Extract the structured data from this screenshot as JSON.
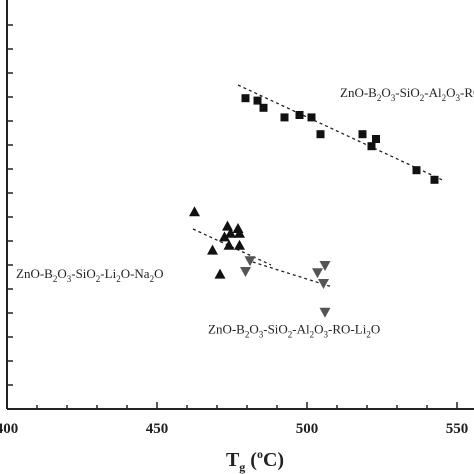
{
  "chart_data": {
    "type": "scatter",
    "title": "",
    "xlabel": "Tg (oC)",
    "xlabel_parts": {
      "main": "T",
      "sub": "g",
      "open": " (",
      "sup": "o",
      "close": "C)"
    },
    "ylabel": "",
    "xlim": [
      400,
      600
    ],
    "ylim": [
      0,
      17
    ],
    "x_ticks": [
      400,
      450,
      500,
      550
    ],
    "x_tick_labels": [
      "400",
      "450",
      "500",
      "550"
    ],
    "grid": false,
    "series": [
      {
        "marker": "square",
        "color": "#111111",
        "points": [
          [
            479.5,
            12.95
          ],
          [
            483.5,
            12.85
          ],
          [
            485.5,
            12.55
          ],
          [
            492.5,
            12.15
          ],
          [
            497.5,
            12.25
          ],
          [
            501.5,
            12.15
          ],
          [
            504.5,
            11.45
          ],
          [
            518.5,
            11.45
          ],
          [
            521.5,
            10.95
          ],
          [
            523.0,
            11.25
          ],
          [
            536.5,
            9.95
          ],
          [
            542.5,
            9.55
          ]
        ],
        "trend": {
          "from": [
            477,
            13.5
          ],
          "to": [
            545,
            9.55
          ]
        }
      },
      {
        "marker": "triangle-up",
        "color": "#111111",
        "points": [
          [
            462.5,
            8.2
          ],
          [
            468.5,
            6.6
          ],
          [
            472.5,
            7.15
          ],
          [
            473.5,
            7.6
          ],
          [
            474.0,
            6.8
          ],
          [
            474.5,
            7.3
          ],
          [
            477.0,
            7.5
          ],
          [
            477.5,
            7.3
          ],
          [
            477.5,
            6.8
          ],
          [
            471.0,
            5.6
          ]
        ],
        "trend": {
          "from": [
            462,
            7.5
          ],
          "to": [
            488,
            6.0
          ]
        }
      },
      {
        "marker": "triangle-down",
        "color": "#555555",
        "points": [
          [
            481.0,
            6.2
          ],
          [
            479.5,
            5.75
          ],
          [
            503.5,
            5.7
          ],
          [
            506.0,
            6.0
          ],
          [
            505.5,
            5.25
          ],
          [
            506.0,
            4.05
          ]
        ],
        "trend": {
          "from": [
            480,
            6.2
          ],
          "to": [
            508,
            5.1
          ]
        }
      }
    ],
    "annotations": [
      {
        "parts": [
          [
            "ZnO-B",
            null
          ],
          [
            "2",
            "sub"
          ],
          [
            "O",
            null
          ],
          [
            "3",
            "sub"
          ],
          [
            "-SiO",
            null
          ],
          [
            "2",
            "sub"
          ],
          [
            "-Al",
            null
          ],
          [
            "2",
            "sub"
          ],
          [
            "O",
            null
          ],
          [
            "3",
            "sub"
          ],
          [
            "-RO-",
            null
          ]
        ],
        "x": 511,
        "y": 13.0
      },
      {
        "parts": [
          [
            "ZnO-B",
            null
          ],
          [
            "2",
            "sub"
          ],
          [
            "O",
            null
          ],
          [
            "3",
            "sub"
          ],
          [
            "-SiO",
            null
          ],
          [
            "2",
            "sub"
          ],
          [
            "-Li",
            null
          ],
          [
            "2",
            "sub"
          ],
          [
            "O-Na",
            null
          ],
          [
            "2",
            "sub"
          ],
          [
            "O",
            null
          ]
        ],
        "x": 403,
        "y": 5.45
      },
      {
        "parts": [
          [
            "ZnO-B",
            null
          ],
          [
            "2",
            "sub"
          ],
          [
            "O",
            null
          ],
          [
            "3",
            "sub"
          ],
          [
            "-SiO",
            null
          ],
          [
            "2",
            "sub"
          ],
          [
            "-Al",
            null
          ],
          [
            "2",
            "sub"
          ],
          [
            "O",
            null
          ],
          [
            "3",
            "sub"
          ],
          [
            "-RO-Li",
            null
          ],
          [
            "2",
            "sub"
          ],
          [
            "O",
            null
          ]
        ],
        "x": 467,
        "y": 3.15
      }
    ]
  }
}
